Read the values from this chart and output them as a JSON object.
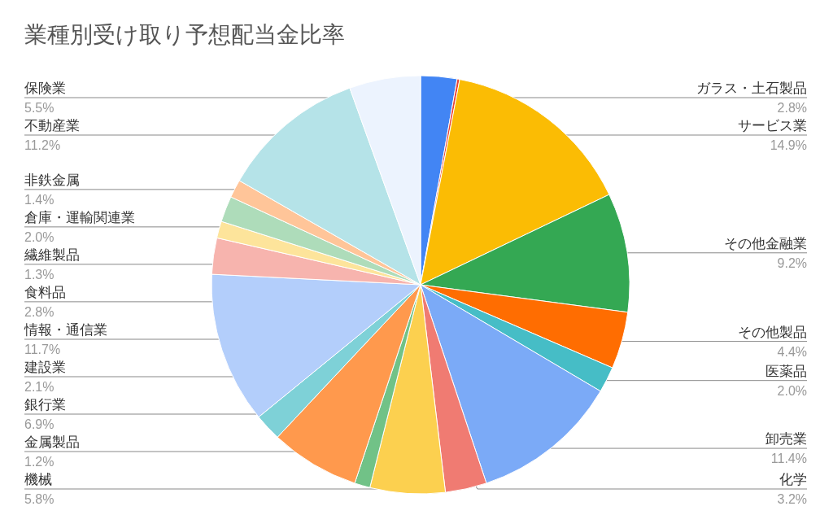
{
  "chart_data": {
    "type": "pie",
    "title": "業種別受け取り予想配当金比率",
    "categories": [
      "ガラス・土石製品",
      null,
      "サービス業",
      "その他金融業",
      "その他製品",
      "医薬品",
      "卸売業",
      "化学",
      "機械",
      "金属製品",
      "銀行業",
      "建設業",
      "情報・通信業",
      "食料品",
      "繊維製品",
      "倉庫・運輸関連業",
      "非鉄金属",
      "不動産業",
      "保険業"
    ],
    "values": [
      2.8,
      0.2,
      14.9,
      9.2,
      4.4,
      2.0,
      11.4,
      3.2,
      5.8,
      1.2,
      6.9,
      2.1,
      11.7,
      2.8,
      1.3,
      2.0,
      1.4,
      11.2,
      5.5
    ],
    "value_labels": [
      "2.8%",
      null,
      "14.9%",
      "9.2%",
      "4.4%",
      "2.0%",
      "11.4%",
      "3.2%",
      "5.8%",
      "1.2%",
      "6.9%",
      "2.1%",
      "11.7%",
      "2.8%",
      "1.3%",
      "2.0%",
      "1.4%",
      "11.2%",
      "5.5%"
    ],
    "colors": [
      "#4285f4",
      "#ea4335",
      "#fbbc04",
      "#34a853",
      "#ff6d01",
      "#46bdc6",
      "#7baaf7",
      "#f07b72",
      "#fcd04f",
      "#71c287",
      "#ff994d",
      "#7ed1d7",
      "#b3cefb",
      "#f7b4ae",
      "#fde49b",
      "#aedcba",
      "#ffc599",
      "#b5e3e8",
      "#ecf3fe"
    ],
    "legend": false
  }
}
